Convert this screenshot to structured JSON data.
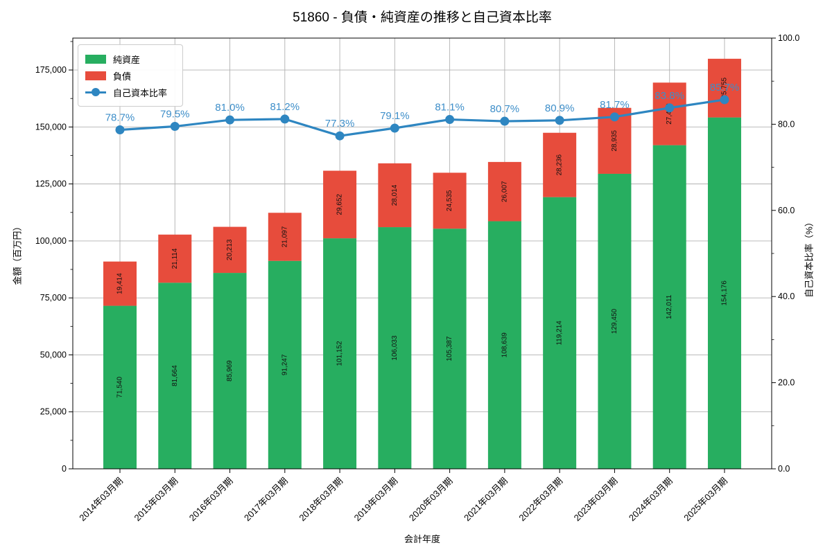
{
  "chart_data": {
    "type": "bar",
    "subtype": "stacked-bar-with-line",
    "title": "51860 - 負債・純資産の推移と自己資本比率",
    "xlabel": "会計年度",
    "ylabel_left": "金額（百万円）",
    "ylabel_right": "自己資本比率（%）",
    "categories": [
      "2014年03月期",
      "2015年03月期",
      "2016年03月期",
      "2017年03月期",
      "2018年03月期",
      "2019年03月期",
      "2020年03月期",
      "2021年03月期",
      "2022年03月期",
      "2023年03月期",
      "2024年03月期",
      "2025年03月期"
    ],
    "series": [
      {
        "name": "純資産",
        "color": "#27ae60",
        "values": [
          71540,
          81664,
          85969,
          91247,
          101152,
          106033,
          105387,
          108639,
          119214,
          129450,
          142011,
          154176
        ]
      },
      {
        "name": "負債",
        "color": "#e74c3c",
        "values": [
          19414,
          21114,
          20213,
          21097,
          29652,
          28014,
          24535,
          26007,
          28236,
          28935,
          27453,
          25755
        ]
      }
    ],
    "line_series": {
      "name": "自己資本比率",
      "color": "#2e86c1",
      "label_color": "#3d8ec9",
      "unit": "%",
      "values": [
        78.7,
        79.5,
        81.0,
        81.2,
        77.3,
        79.1,
        81.1,
        80.7,
        80.9,
        81.7,
        83.8,
        85.7
      ]
    },
    "ylim_left": [
      0,
      189000
    ],
    "yticks_left": [
      0,
      25000,
      50000,
      75000,
      100000,
      125000,
      150000,
      175000
    ],
    "ylim_right": [
      0,
      100
    ],
    "yticks_right": [
      0.0,
      20.0,
      40.0,
      60.0,
      80.0,
      100.0
    ],
    "grid": true,
    "legend_position": "upper-left",
    "legend": [
      "純資産",
      "負債",
      "自己資本比率"
    ],
    "colors": {
      "grid": "#b0b0b0",
      "spine": "#000000",
      "text": "#000000",
      "bar_label": "#111111",
      "background": "#ffffff"
    }
  }
}
